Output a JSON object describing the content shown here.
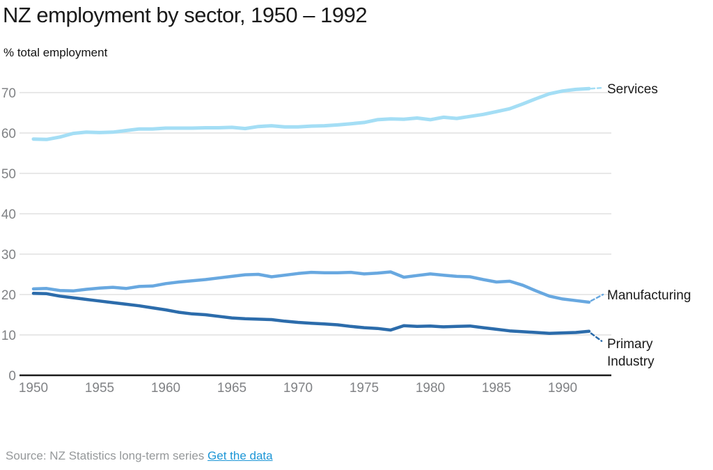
{
  "page": {
    "title": "NZ employment by sector, 1950 – 1992",
    "subtitle": "% total employment"
  },
  "footer": {
    "source_text": "Source: NZ Statistics long-term series",
    "link_label": "Get the data"
  },
  "colors": {
    "services": "#a4def5",
    "manufacturing": "#68a8e0",
    "primary_industry": "#2c6cab",
    "grid": "#e8e8e8",
    "axis": "#1a1a1a",
    "tick_labels": "#808285",
    "series_labels": "#1a1a1a",
    "source_text": "#95989a",
    "link": "#1d96d6"
  },
  "chart_data": {
    "type": "line",
    "title": "NZ employment by sector, 1950 – 1992",
    "xlabel": "",
    "ylabel": "% total employment",
    "xlim": [
      1950,
      1992
    ],
    "ylim": [
      0,
      72
    ],
    "grid": "horizontal",
    "legend_position": "right-end-labels",
    "x_ticks": [
      1950,
      1955,
      1960,
      1965,
      1970,
      1975,
      1980,
      1985,
      1990
    ],
    "y_ticks": [
      0,
      10,
      20,
      30,
      40,
      50,
      60,
      70
    ],
    "x": [
      1950,
      1951,
      1952,
      1953,
      1954,
      1955,
      1956,
      1957,
      1958,
      1959,
      1960,
      1961,
      1962,
      1963,
      1964,
      1965,
      1966,
      1967,
      1968,
      1969,
      1970,
      1971,
      1972,
      1973,
      1974,
      1975,
      1976,
      1977,
      1978,
      1979,
      1980,
      1981,
      1982,
      1983,
      1984,
      1985,
      1986,
      1987,
      1988,
      1989,
      1990,
      1991,
      1992
    ],
    "series": [
      {
        "name": "Services",
        "label_lines": [
          "Services"
        ],
        "color": "#a4def5",
        "values": [
          58.5,
          58.4,
          59.0,
          59.9,
          60.2,
          60.1,
          60.2,
          60.6,
          61.0,
          61.0,
          61.2,
          61.2,
          61.2,
          61.3,
          61.3,
          61.4,
          61.1,
          61.6,
          61.8,
          61.5,
          61.5,
          61.7,
          61.8,
          62.0,
          62.3,
          62.6,
          63.3,
          63.5,
          63.4,
          63.7,
          63.3,
          63.9,
          63.6,
          64.1,
          64.6,
          65.3,
          66.0,
          67.2,
          68.5,
          69.7,
          70.4,
          70.8,
          71.0
        ]
      },
      {
        "name": "Manufacturing",
        "label_lines": [
          "Manufacturing"
        ],
        "color": "#68a8e0",
        "values": [
          21.4,
          21.5,
          21.0,
          20.9,
          21.3,
          21.6,
          21.8,
          21.5,
          22.0,
          22.1,
          22.7,
          23.1,
          23.4,
          23.7,
          24.1,
          24.5,
          24.9,
          25.0,
          24.4,
          24.8,
          25.2,
          25.5,
          25.4,
          25.4,
          25.5,
          25.1,
          25.3,
          25.6,
          24.3,
          24.7,
          25.1,
          24.8,
          24.5,
          24.4,
          23.7,
          23.1,
          23.3,
          22.3,
          20.9,
          19.6,
          18.9,
          18.5,
          18.1
        ]
      },
      {
        "name": "Primary Industry",
        "label_lines": [
          "Primary",
          "Industry"
        ],
        "color": "#2c6cab",
        "values": [
          20.3,
          20.2,
          19.6,
          19.2,
          18.8,
          18.4,
          18.0,
          17.6,
          17.2,
          16.7,
          16.2,
          15.6,
          15.2,
          15.0,
          14.6,
          14.2,
          14.0,
          13.9,
          13.8,
          13.4,
          13.1,
          12.9,
          12.7,
          12.5,
          12.1,
          11.8,
          11.6,
          11.2,
          12.3,
          12.1,
          12.2,
          12.0,
          12.1,
          12.2,
          11.8,
          11.4,
          11.0,
          10.8,
          10.6,
          10.4,
          10.5,
          10.6,
          10.9
        ]
      }
    ]
  }
}
